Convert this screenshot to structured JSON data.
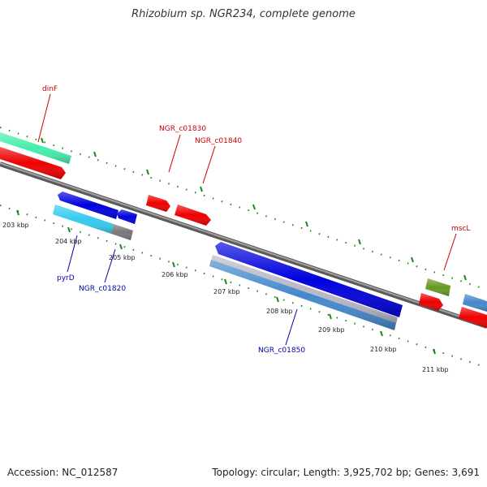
{
  "title": "Rhizobium sp. NGR234, complete genome",
  "footer": {
    "accession": "Accession: NC_012587",
    "summary": "Topology: circular; Length: 3,925,702 bp; Genes: 3,691"
  },
  "ticks": {
    "unit": "kbp",
    "labels": [
      "203 kbp",
      "204 kbp",
      "205 kbp",
      "206 kbp",
      "207 kbp",
      "208 kbp",
      "209 kbp",
      "210 kbp",
      "211 kbp"
    ]
  },
  "gene_labels": {
    "forward": [
      "dinF",
      "NGR_c01830",
      "NGR_c01840",
      "mscL"
    ],
    "reverse": [
      "pyrD",
      "NGR_c01820",
      "NGR_c01850"
    ]
  },
  "colors": {
    "forward_label": "#cc0000",
    "reverse_label": "#0000aa",
    "tick": "#1a8a1a",
    "backbone": "#808080",
    "forward_gene": "#ee0000",
    "reverse_gene": "#0000dd",
    "cds_cyan": "#33ccee",
    "cds_teal": "#44eeaa",
    "cds_olive": "#669922",
    "cds_steel": "#4488cc",
    "cds_gray": "#777777"
  }
}
